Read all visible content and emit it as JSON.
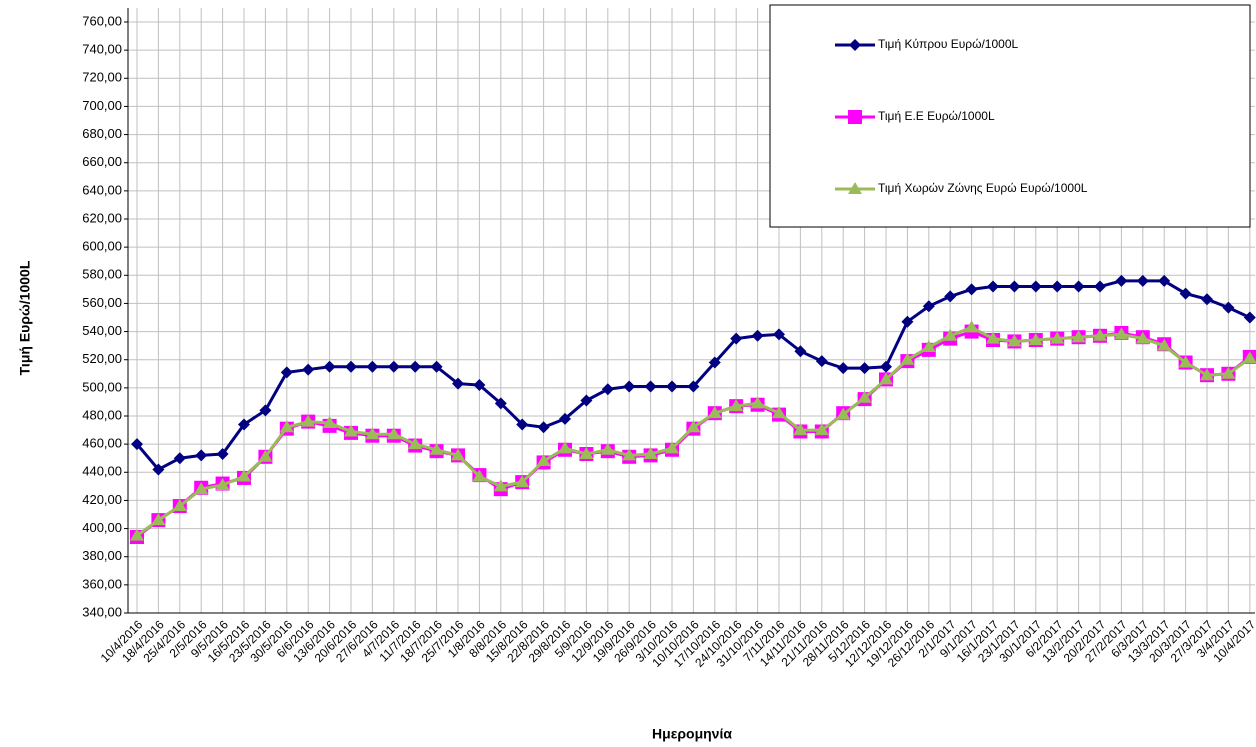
{
  "chart_data": {
    "type": "line",
    "x_label": "Ημερομηνία",
    "y_label": "Τιμή Ευρώ/1000L",
    "categories": [
      "10/4/2016",
      "18/4/2016",
      "25/4/2016",
      "2/5/2016",
      "9/5/2016",
      "16/5/2016",
      "23/5/2016",
      "30/5/2016",
      "6/6/2016",
      "13/6/2016",
      "20/6/2016",
      "27/6/2016",
      "4/7/2016",
      "11/7/2016",
      "18/7/2016",
      "25/7/2016",
      "1/8/2016",
      "8/8/2016",
      "15/8/2016",
      "22/8/2016",
      "29/8/2016",
      "5/9/2016",
      "12/9/2016",
      "19/9/2016",
      "26/9/2016",
      "3/10/2016",
      "10/10/2016",
      "17/10/2016",
      "24/10/2016",
      "31/10/2016",
      "7/11/2016",
      "14/11/2016",
      "21/11/2016",
      "28/11/2016",
      "5/12/2016",
      "12/12/2016",
      "19/12/2016",
      "26/12/2016",
      "2/1/2017",
      "9/1/2017",
      "16/1/2017",
      "23/1/2017",
      "30/1/2017",
      "6/2/2017",
      "13/2/2017",
      "20/2/2017",
      "27/2/2017",
      "6/3/2017",
      "13/3/2017",
      "20/3/2017",
      "27/3/2017",
      "3/4/2017",
      "10/4/2017"
    ],
    "series": [
      {
        "name": "Τιμή Κύπρου Ευρώ/1000L",
        "color": "#000080",
        "marker": "diamond",
        "values": [
          460,
          442,
          450,
          452,
          453,
          474,
          484,
          511,
          513,
          515,
          515,
          515,
          515,
          515,
          515,
          503,
          502,
          489,
          474,
          472,
          478,
          491,
          499,
          501,
          501,
          501,
          501,
          518,
          535,
          537,
          538,
          526,
          519,
          514,
          514,
          515,
          547,
          558,
          565,
          570,
          572,
          572,
          572,
          572,
          572,
          572,
          576,
          576,
          576,
          567,
          563,
          557,
          550
        ]
      },
      {
        "name": "Τιμή Ε.Ε Ευρώ/1000L",
        "color": "#ff00ff",
        "marker": "square",
        "values": [
          394,
          406,
          416,
          429,
          432,
          436,
          451,
          471,
          476,
          473,
          468,
          466,
          466,
          459,
          455,
          452,
          438,
          428,
          433,
          447,
          456,
          453,
          455,
          451,
          452,
          456,
          471,
          482,
          487,
          488,
          481,
          469,
          469,
          482,
          492,
          506,
          519,
          527,
          535,
          540,
          534,
          533,
          534,
          535,
          536,
          537,
          539,
          536,
          531,
          518,
          509,
          510,
          522
        ]
      },
      {
        "name": "Τιμή Χωρών  Ζώνης Ευρώ Ευρώ/1000L",
        "color": "#9bbb59",
        "marker": "triangle",
        "values": [
          395,
          406,
          416,
          428,
          431,
          437,
          451,
          472,
          476,
          475,
          469,
          467,
          467,
          460,
          456,
          452,
          437,
          430,
          433,
          448,
          457,
          453,
          456,
          452,
          453,
          457,
          472,
          482,
          487,
          489,
          482,
          470,
          470,
          481,
          493,
          506,
          520,
          529,
          537,
          543,
          535,
          533,
          534,
          535,
          536,
          537,
          538,
          535,
          530,
          518,
          509,
          510,
          521
        ]
      }
    ],
    "ylim": [
      340,
      760
    ],
    "yticks": [
      {
        "value": 340,
        "label": "340,00"
      },
      {
        "value": 360,
        "label": "360,00"
      },
      {
        "value": 380,
        "label": "380,00"
      },
      {
        "value": 400,
        "label": "400,00"
      },
      {
        "value": 420,
        "label": "420,00"
      },
      {
        "value": 440,
        "label": "440,00"
      },
      {
        "value": 460,
        "label": "460,00"
      },
      {
        "value": 480,
        "label": "480,00"
      },
      {
        "value": 500,
        "label": "500,00"
      },
      {
        "value": 520,
        "label": "520,00"
      },
      {
        "value": 540,
        "label": "540,00"
      },
      {
        "value": 560,
        "label": "560,00"
      },
      {
        "value": 580,
        "label": "580,00"
      },
      {
        "value": 600,
        "label": "600,00"
      },
      {
        "value": 620,
        "label": "620,00"
      },
      {
        "value": 640,
        "label": "640,00"
      },
      {
        "value": 660,
        "label": "660,00"
      },
      {
        "value": 680,
        "label": "680,00"
      },
      {
        "value": 700,
        "label": "700,00"
      },
      {
        "value": 720,
        "label": "720,00"
      },
      {
        "value": 740,
        "label": "740,00"
      },
      {
        "value": 760,
        "label": "760,00"
      }
    ],
    "grid": true,
    "legend": "top-right"
  }
}
